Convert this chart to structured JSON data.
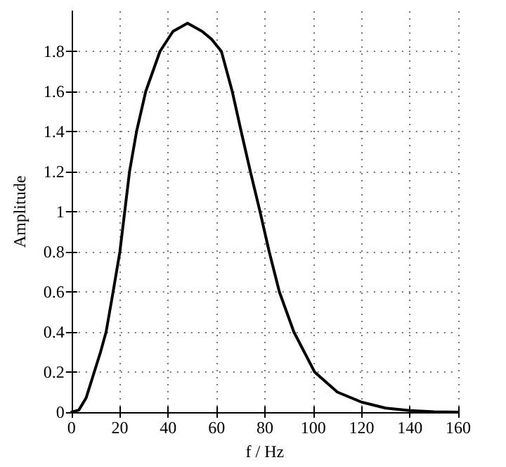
{
  "chart_data": {
    "type": "line",
    "xlabel": "f / Hz",
    "ylabel": "Amplitude",
    "x": [
      0,
      3,
      6,
      9.4,
      12,
      14.3,
      17.2,
      20,
      22,
      24,
      26.9,
      30.7,
      36.6,
      42,
      48,
      54,
      58,
      62,
      66.5,
      70.2,
      74,
      78,
      81.8,
      86,
      92,
      100.6,
      110,
      120,
      130,
      140,
      150,
      160
    ],
    "series": [
      {
        "color": "#000000",
        "values": [
          0,
          0.01,
          0.07,
          0.2,
          0.3,
          0.4,
          0.6,
          0.8,
          1.0,
          1.2,
          1.4,
          1.6,
          1.8,
          1.9,
          1.94,
          1.9,
          1.86,
          1.8,
          1.6,
          1.4,
          1.2,
          1.0,
          0.8,
          0.6,
          0.4,
          0.2,
          0.1,
          0.05,
          0.02,
          0.008,
          0.002,
          0
        ]
      }
    ],
    "xlim": [
      0,
      160
    ],
    "xticks": [
      0,
      20,
      40,
      60,
      80,
      100,
      120,
      140,
      160
    ],
    "ylim": [
      0,
      2
    ],
    "yticks": [
      0,
      0.2,
      0.4,
      0.6,
      0.8,
      1,
      1.2,
      1.4,
      1.6,
      1.8
    ],
    "grid": true,
    "line_style": "solid",
    "marker": "none"
  }
}
